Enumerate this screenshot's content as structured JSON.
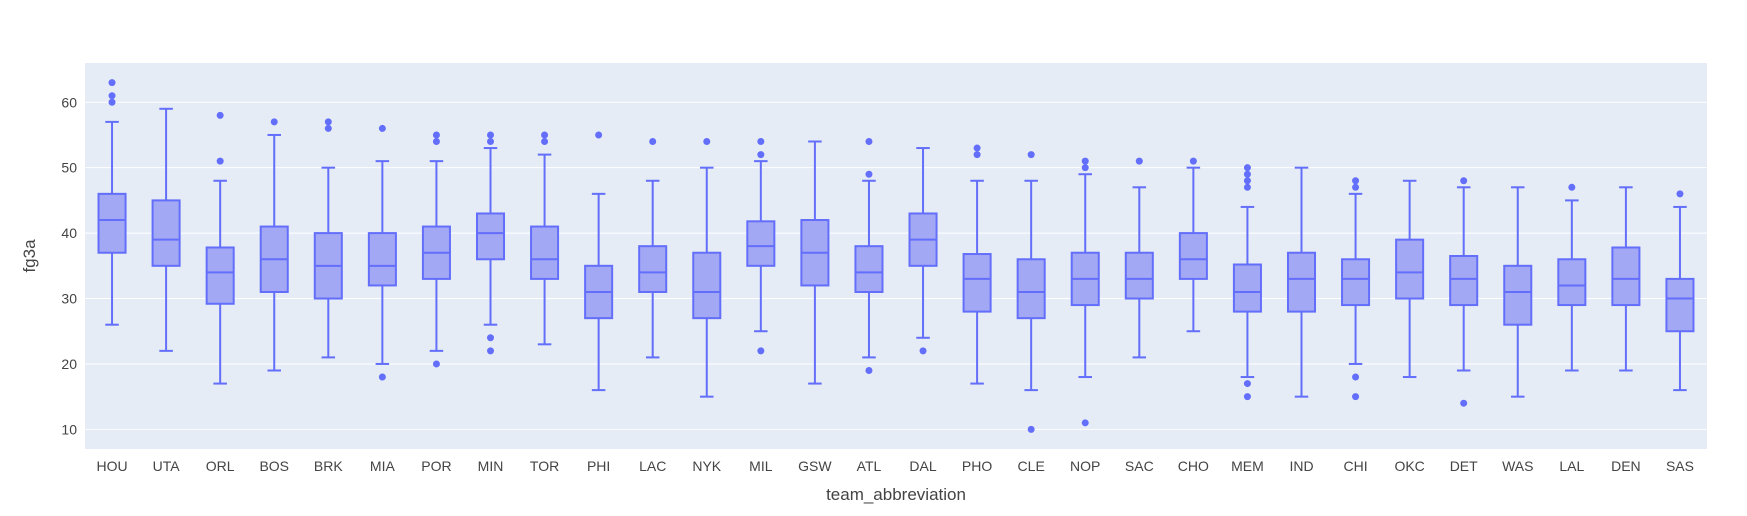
{
  "chart_data": {
    "type": "box",
    "title": "",
    "xlabel": "team_abbreviation",
    "ylabel": "fg3a",
    "ylim": [
      7,
      66
    ],
    "yticks": [
      10,
      20,
      30,
      40,
      50,
      60
    ],
    "grid": true,
    "color": "#636efa",
    "fill": "#a3a8f5",
    "plot_bg": "#e5ecf6",
    "categories": [
      "HOU",
      "UTA",
      "ORL",
      "BOS",
      "BRK",
      "MIA",
      "POR",
      "MIN",
      "TOR",
      "PHI",
      "LAC",
      "NYK",
      "MIL",
      "GSW",
      "ATL",
      "DAL",
      "PHO",
      "CLE",
      "NOP",
      "SAC",
      "CHO",
      "MEM",
      "IND",
      "CHI",
      "OKC",
      "DET",
      "WAS",
      "LAL",
      "DEN",
      "SAS"
    ],
    "boxes": [
      {
        "team": "HOU",
        "lower": 26,
        "q1": 37,
        "median": 42,
        "q3": 46,
        "upper": 57,
        "outliers": [
          60,
          61,
          63
        ]
      },
      {
        "team": "UTA",
        "lower": 22,
        "q1": 35,
        "median": 39,
        "q3": 45,
        "upper": 59,
        "outliers": []
      },
      {
        "team": "ORL",
        "lower": 17,
        "q1": 29.2,
        "median": 34,
        "q3": 37.8,
        "upper": 48,
        "outliers": [
          51,
          58
        ]
      },
      {
        "team": "BOS",
        "lower": 19,
        "q1": 31,
        "median": 36,
        "q3": 41,
        "upper": 55,
        "outliers": [
          57
        ]
      },
      {
        "team": "BRK",
        "lower": 21,
        "q1": 30,
        "median": 35,
        "q3": 40,
        "upper": 50,
        "outliers": [
          56,
          57
        ]
      },
      {
        "team": "MIA",
        "lower": 20,
        "q1": 32,
        "median": 35,
        "q3": 40,
        "upper": 51,
        "outliers": [
          18,
          56
        ]
      },
      {
        "team": "POR",
        "lower": 22,
        "q1": 33,
        "median": 37,
        "q3": 41,
        "upper": 51,
        "outliers": [
          20,
          54,
          55
        ]
      },
      {
        "team": "MIN",
        "lower": 26,
        "q1": 36,
        "median": 40,
        "q3": 43,
        "upper": 53,
        "outliers": [
          22,
          24,
          54,
          55
        ]
      },
      {
        "team": "TOR",
        "lower": 23,
        "q1": 33,
        "median": 36,
        "q3": 41,
        "upper": 52,
        "outliers": [
          54,
          55
        ]
      },
      {
        "team": "PHI",
        "lower": 16,
        "q1": 27,
        "median": 31,
        "q3": 35,
        "upper": 46,
        "outliers": [
          55
        ]
      },
      {
        "team": "LAC",
        "lower": 21,
        "q1": 31,
        "median": 34,
        "q3": 38,
        "upper": 48,
        "outliers": [
          54
        ]
      },
      {
        "team": "NYK",
        "lower": 15,
        "q1": 27,
        "median": 31,
        "q3": 37,
        "upper": 50,
        "outliers": [
          54
        ]
      },
      {
        "team": "MIL",
        "lower": 25,
        "q1": 35,
        "median": 38,
        "q3": 41.8,
        "upper": 51,
        "outliers": [
          22,
          52,
          54
        ]
      },
      {
        "team": "GSW",
        "lower": 17,
        "q1": 32,
        "median": 37,
        "q3": 42,
        "upper": 54,
        "outliers": []
      },
      {
        "team": "ATL",
        "lower": 21,
        "q1": 31,
        "median": 34,
        "q3": 38,
        "upper": 48,
        "outliers": [
          19,
          49,
          54
        ]
      },
      {
        "team": "DAL",
        "lower": 24,
        "q1": 35,
        "median": 39,
        "q3": 43,
        "upper": 53,
        "outliers": [
          22
        ]
      },
      {
        "team": "PHO",
        "lower": 17,
        "q1": 28,
        "median": 33,
        "q3": 36.8,
        "upper": 48,
        "outliers": [
          52,
          53
        ]
      },
      {
        "team": "CLE",
        "lower": 16,
        "q1": 27,
        "median": 31,
        "q3": 36,
        "upper": 48,
        "outliers": [
          10,
          52
        ]
      },
      {
        "team": "NOP",
        "lower": 18,
        "q1": 29,
        "median": 33,
        "q3": 37,
        "upper": 49,
        "outliers": [
          11,
          50,
          51
        ]
      },
      {
        "team": "SAC",
        "lower": 21,
        "q1": 30,
        "median": 33,
        "q3": 37,
        "upper": 47,
        "outliers": [
          51
        ]
      },
      {
        "team": "CHO",
        "lower": 25,
        "q1": 33,
        "median": 36,
        "q3": 40,
        "upper": 50,
        "outliers": [
          51
        ]
      },
      {
        "team": "MEM",
        "lower": 18,
        "q1": 28,
        "median": 31,
        "q3": 35.2,
        "upper": 44,
        "outliers": [
          15,
          17,
          47,
          48,
          49,
          50
        ]
      },
      {
        "team": "IND",
        "lower": 15,
        "q1": 28,
        "median": 33,
        "q3": 37,
        "upper": 50,
        "outliers": []
      },
      {
        "team": "CHI",
        "lower": 20,
        "q1": 29,
        "median": 33,
        "q3": 36,
        "upper": 46,
        "outliers": [
          15,
          18,
          47,
          48
        ]
      },
      {
        "team": "OKC",
        "lower": 18,
        "q1": 30,
        "median": 34,
        "q3": 39,
        "upper": 48,
        "outliers": []
      },
      {
        "team": "DET",
        "lower": 19,
        "q1": 29,
        "median": 33,
        "q3": 36.5,
        "upper": 47,
        "outliers": [
          14,
          48
        ]
      },
      {
        "team": "WAS",
        "lower": 15,
        "q1": 26,
        "median": 31,
        "q3": 35,
        "upper": 47,
        "outliers": []
      },
      {
        "team": "LAL",
        "lower": 19,
        "q1": 29,
        "median": 32,
        "q3": 36,
        "upper": 45,
        "outliers": [
          47
        ]
      },
      {
        "team": "DEN",
        "lower": 19,
        "q1": 29,
        "median": 33,
        "q3": 37.8,
        "upper": 47,
        "outliers": []
      },
      {
        "team": "SAS",
        "lower": 16,
        "q1": 25,
        "median": 30,
        "q3": 33,
        "upper": 44,
        "outliers": [
          46
        ]
      }
    ]
  }
}
